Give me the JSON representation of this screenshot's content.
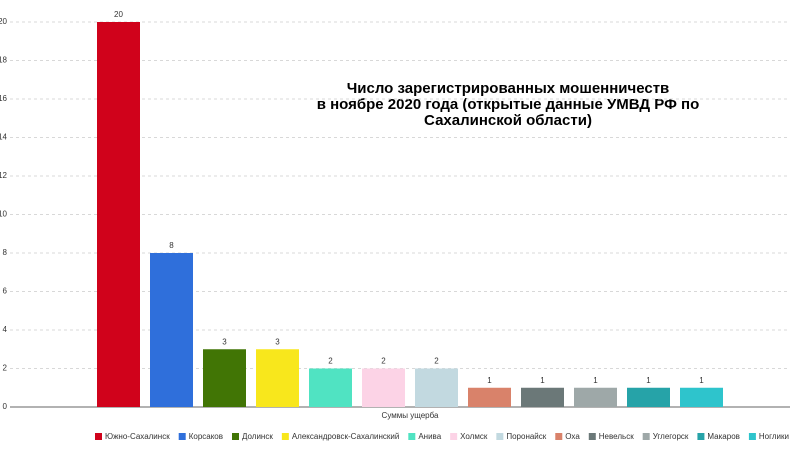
{
  "chart_data": {
    "type": "bar",
    "title": [
      "Число зарегистрированных мошенничеств",
      "в ноябре 2020 года (открытые данные УМВД РФ по",
      "Сахалинской области)"
    ],
    "x_label": "Суммы ущерба",
    "categories": [
      "Южно-Сахалинск",
      "Корсаков",
      "Долинск",
      "Александровск-Сахалинский",
      "Анива",
      "Холмск",
      "Поронайск",
      "Оха",
      "Невельск",
      "Углегорск",
      "Макаров",
      "Ноглики"
    ],
    "values": [
      20,
      8,
      3,
      3,
      2,
      2,
      2,
      1,
      1,
      1,
      1,
      1
    ],
    "colors": [
      "#d0021b",
      "#2f6fdb",
      "#417505",
      "#f8e71c",
      "#50e3c2",
      "#fcd3e6",
      "#c2d9e0",
      "#d9826a",
      "#6b7878",
      "#9ea8a8",
      "#26a3a8",
      "#2ec4cc"
    ],
    "ylim": [
      0,
      20
    ],
    "yticks": [
      0,
      2,
      4,
      6,
      8,
      10,
      12,
      14,
      16,
      18,
      20
    ],
    "grid": true,
    "legend": "bottom"
  }
}
